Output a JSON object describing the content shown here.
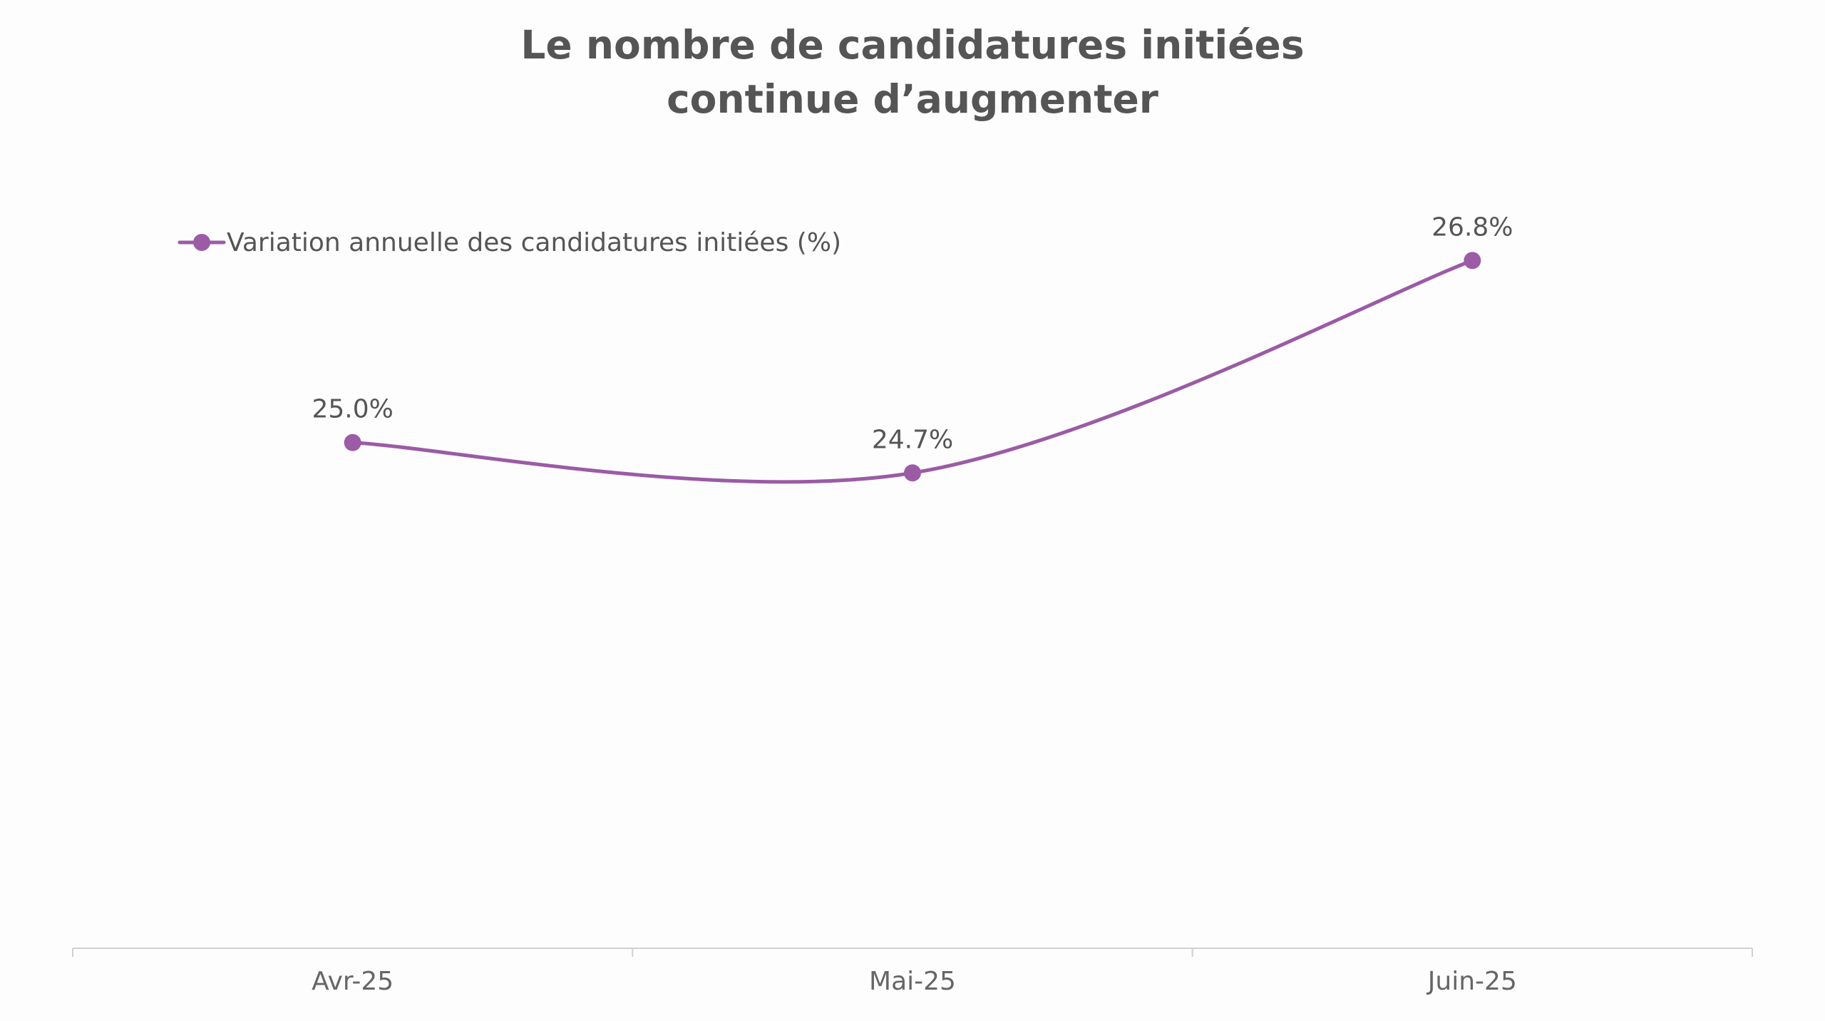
{
  "chart_data": {
    "type": "line",
    "title": [
      "Le nombre de candidatures initiées",
      "continue d’augmenter"
    ],
    "categories": [
      "Avr-25",
      "Mai-25",
      "Juin-25"
    ],
    "series": [
      {
        "name": "Variation annuelle des candidatures initiées (%)",
        "values": [
          25.0,
          24.7,
          26.8
        ],
        "labels": [
          "25.0%",
          "24.7%",
          "26.8%"
        ],
        "color": "#9b5ba5"
      }
    ],
    "ylim": [
      20.0,
      27.0
    ],
    "smooth": true,
    "grid": false,
    "legend_position": "top-left",
    "axis_color": "#d0d0d0"
  }
}
